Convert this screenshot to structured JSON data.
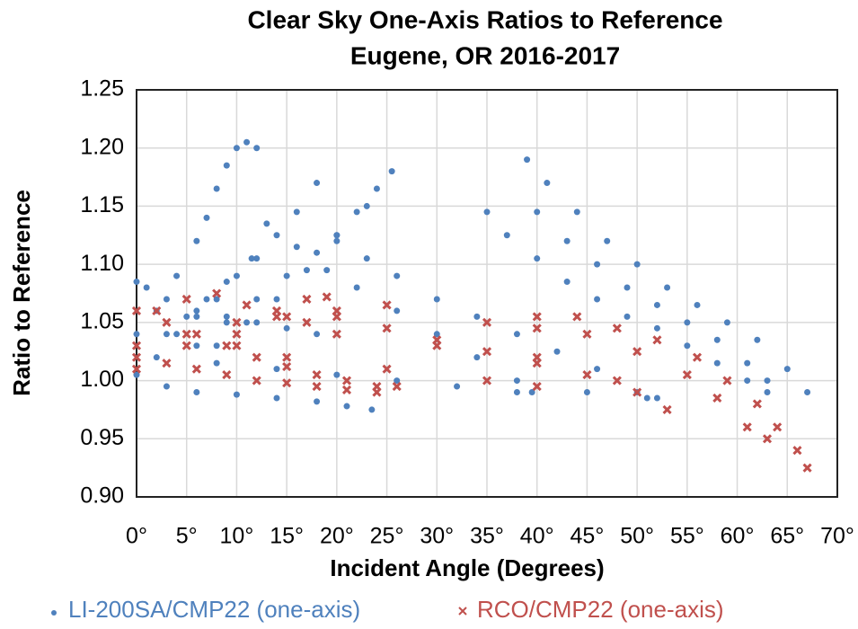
{
  "chart_data": {
    "type": "scatter",
    "title": "Clear Sky One-Axis Ratios to Reference",
    "subtitle": "Eugene, OR 2016-2017",
    "x_label": "Incident Angle (Degrees)",
    "y_label": "Ratio to Reference",
    "xlim": [
      0,
      70
    ],
    "ylim": [
      0.9,
      1.25
    ],
    "xticks": [
      {
        "value": 0,
        "label": "0°"
      },
      {
        "value": 5,
        "label": "5°"
      },
      {
        "value": 10,
        "label": "10°"
      },
      {
        "value": 15,
        "label": "15°"
      },
      {
        "value": 20,
        "label": "20°"
      },
      {
        "value": 25,
        "label": "25°"
      },
      {
        "value": 30,
        "label": "30°"
      },
      {
        "value": 35,
        "label": "35°"
      },
      {
        "value": 40,
        "label": "40°"
      },
      {
        "value": 45,
        "label": "45°"
      },
      {
        "value": 50,
        "label": "50°"
      },
      {
        "value": 55,
        "label": "55°"
      },
      {
        "value": 60,
        "label": "60°"
      },
      {
        "value": 65,
        "label": "65°"
      },
      {
        "value": 70,
        "label": "70°"
      }
    ],
    "yticks": [
      {
        "value": 0.9,
        "label": "0.90"
      },
      0.95,
      {
        "value": 1.0,
        "label": "1.00"
      },
      1.05,
      {
        "value": 1.1,
        "label": "1.10"
      },
      1.15,
      {
        "value": 1.2,
        "label": "1.20"
      },
      1.25
    ],
    "grid": true,
    "legend": "bottom",
    "series": [
      {
        "name": "LI-200SA/CMP22 (one-axis)",
        "color": "#4f81bd",
        "marker": "dot",
        "x": [
          0,
          2,
          4,
          6,
          7,
          8,
          9,
          10,
          11,
          12,
          0,
          1,
          3,
          6,
          9,
          12,
          15,
          18,
          4,
          6,
          8,
          10,
          12,
          14,
          16,
          18,
          6,
          9,
          12,
          15,
          18,
          20,
          22,
          24,
          25.5,
          8,
          11,
          14,
          17,
          20,
          23,
          3,
          5,
          7,
          9,
          11.5,
          13,
          16,
          19,
          22,
          26,
          30,
          34,
          38,
          39.5,
          20,
          23,
          26,
          30,
          34,
          38,
          42,
          46,
          50,
          51,
          0,
          3,
          6,
          10,
          14,
          18,
          21,
          23.5,
          35,
          37,
          40,
          43,
          46,
          49,
          52,
          55,
          58,
          61,
          63,
          39,
          41,
          44,
          47,
          50,
          53,
          56,
          59,
          62,
          65,
          67,
          40,
          43,
          46,
          49,
          52,
          55,
          58,
          61,
          63,
          2,
          8,
          14,
          20,
          26,
          32,
          38,
          45,
          52
        ],
        "y": [
          1.04,
          1.06,
          1.09,
          1.12,
          1.14,
          1.165,
          1.185,
          1.2,
          1.205,
          1.2,
          1.085,
          1.08,
          1.07,
          1.06,
          1.055,
          1.05,
          1.045,
          1.04,
          1.04,
          1.055,
          1.07,
          1.09,
          1.105,
          1.125,
          1.145,
          1.17,
          1.03,
          1.05,
          1.07,
          1.09,
          1.11,
          1.125,
          1.145,
          1.165,
          1.18,
          1.03,
          1.05,
          1.07,
          1.095,
          1.12,
          1.15,
          1.04,
          1.055,
          1.07,
          1.085,
          1.105,
          1.135,
          1.115,
          1.095,
          1.08,
          1.06,
          1.04,
          1.02,
          1.0,
          0.99,
          1.125,
          1.105,
          1.09,
          1.07,
          1.055,
          1.04,
          1.025,
          1.01,
          0.99,
          0.985,
          1.005,
          0.995,
          0.99,
          0.988,
          0.985,
          0.982,
          0.978,
          0.975,
          1.145,
          1.125,
          1.105,
          1.085,
          1.07,
          1.055,
          1.045,
          1.03,
          1.015,
          1.0,
          0.99,
          1.19,
          1.17,
          1.145,
          1.12,
          1.1,
          1.08,
          1.065,
          1.05,
          1.035,
          1.01,
          0.99,
          1.145,
          1.12,
          1.1,
          1.08,
          1.065,
          1.05,
          1.035,
          1.015,
          1.0,
          1.02,
          1.015,
          1.01,
          1.005,
          1.0,
          0.995,
          0.99,
          0.99,
          0.985
        ]
      },
      {
        "name": "RCO/CMP22 (one-axis)",
        "color": "#c0504d",
        "marker": "x",
        "x": [
          0,
          3,
          6,
          9,
          12,
          15,
          18,
          21,
          24,
          26,
          0,
          3,
          6,
          9,
          12,
          15,
          18,
          21,
          24,
          0,
          5,
          10,
          15,
          20,
          25,
          2,
          5,
          8,
          11,
          14,
          17,
          10,
          14,
          17,
          19,
          20,
          25,
          30,
          35,
          40,
          45,
          50,
          53,
          0,
          10,
          20,
          30,
          40,
          48,
          35,
          40,
          45,
          50,
          55,
          58,
          61,
          63,
          40,
          44,
          48,
          52,
          56,
          59,
          62,
          64,
          66,
          67,
          5,
          15,
          25,
          35,
          40
        ],
        "y": [
          1.06,
          1.05,
          1.04,
          1.03,
          1.02,
          1.012,
          1.005,
          1.0,
          0.995,
          0.995,
          1.02,
          1.015,
          1.01,
          1.005,
          1.0,
          0.998,
          0.995,
          0.992,
          0.99,
          1.03,
          1.04,
          1.05,
          1.055,
          1.06,
          1.065,
          1.06,
          1.07,
          1.075,
          1.065,
          1.055,
          1.05,
          1.04,
          1.06,
          1.07,
          1.072,
          1.055,
          1.045,
          1.035,
          1.025,
          1.015,
          1.005,
          0.99,
          0.975,
          1.01,
          1.03,
          1.04,
          1.03,
          1.02,
          1.0,
          1.05,
          1.045,
          1.04,
          1.025,
          1.005,
          0.985,
          0.96,
          0.95,
          1.055,
          1.055,
          1.045,
          1.035,
          1.02,
          1.0,
          0.98,
          0.96,
          0.94,
          0.925,
          1.03,
          1.02,
          1.01,
          1.0,
          0.995
        ]
      }
    ]
  }
}
